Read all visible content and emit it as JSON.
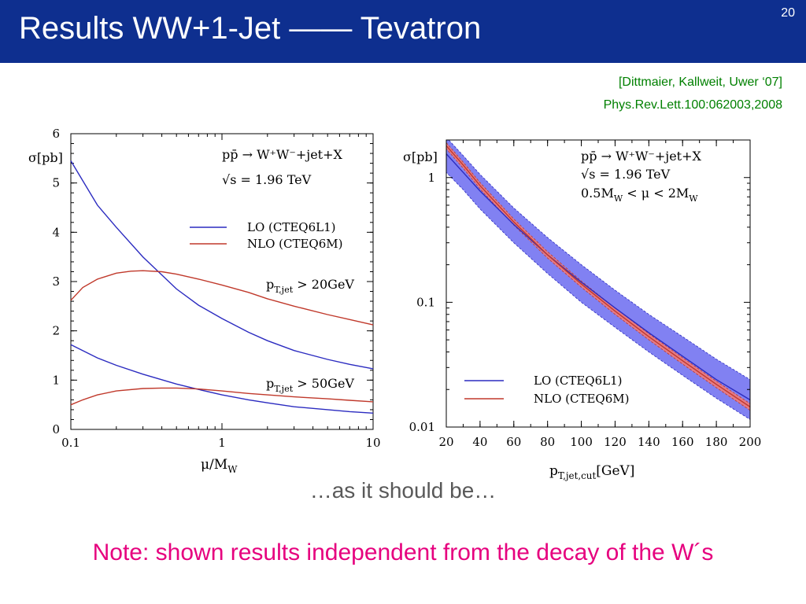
{
  "slide": {
    "title": "Results WW+1-Jet —— Tevatron",
    "page_number": "20",
    "reference_line1": "[Dittmaier, Kallweit, Uwer ‘07]",
    "reference_line2": "Phys.Rev.Lett.100:062003,2008",
    "caption": "…as it should be…",
    "note": "Note: shown results independent from the decay of the W´s"
  },
  "colors": {
    "title_bar": "#0e2f8f",
    "lo": "#2b2bc0",
    "nlo": "#c0392b",
    "lo_band": "#6b6bf0",
    "nlo_band": "#f07a7a",
    "reference": "#008000",
    "caption": "#595959",
    "note": "#e6007e"
  },
  "chart_data": [
    {
      "type": "line",
      "xscale": "log",
      "xlim": [
        0.1,
        10
      ],
      "ylim": [
        0,
        6
      ],
      "xlabel": "μ/M_W",
      "ylabel": "σ[pb]",
      "xticks": [
        0.1,
        1,
        10
      ],
      "xtick_labels": [
        "0.1",
        "1",
        "10"
      ],
      "yticks": [
        0,
        1,
        2,
        3,
        4,
        5,
        6
      ],
      "ytick_labels": [
        "0",
        "1",
        "2",
        "3",
        "4",
        "5",
        "6"
      ],
      "process": "pp̄ → W⁺W⁻+jet+X",
      "energy": "√s = 1.96 TeV",
      "legend": [
        {
          "name": "LO (CTEQ6L1)",
          "color": "#2b2bc0"
        },
        {
          "name": "NLO (CTEQ6M)",
          "color": "#c0392b"
        }
      ],
      "annotations": [
        "p_T,jet > 20GeV",
        "p_T,jet > 50GeV"
      ],
      "series": [
        {
          "name": "LO (CTEQ6L1)",
          "cut": "20GeV",
          "color": "#2b2bc0",
          "x": [
            0.1,
            0.15,
            0.2,
            0.3,
            0.5,
            0.7,
            1,
            1.5,
            2,
            3,
            5,
            7,
            10
          ],
          "y": [
            5.45,
            4.55,
            4.1,
            3.5,
            2.85,
            2.52,
            2.25,
            1.97,
            1.8,
            1.6,
            1.42,
            1.32,
            1.23
          ]
        },
        {
          "name": "NLO (CTEQ6M)",
          "cut": "20GeV",
          "color": "#c0392b",
          "x": [
            0.1,
            0.12,
            0.15,
            0.2,
            0.25,
            0.3,
            0.4,
            0.5,
            0.7,
            1,
            1.5,
            2,
            3,
            5,
            7,
            10
          ],
          "y": [
            2.62,
            2.88,
            3.05,
            3.17,
            3.21,
            3.22,
            3.2,
            3.15,
            3.05,
            2.93,
            2.78,
            2.65,
            2.5,
            2.33,
            2.23,
            2.12
          ]
        },
        {
          "name": "LO (CTEQ6L1)",
          "cut": "50GeV",
          "color": "#2b2bc0",
          "x": [
            0.1,
            0.15,
            0.2,
            0.3,
            0.5,
            0.7,
            1,
            1.5,
            2,
            3,
            5,
            7,
            10
          ],
          "y": [
            1.72,
            1.45,
            1.3,
            1.12,
            0.92,
            0.81,
            0.7,
            0.6,
            0.54,
            0.46,
            0.4,
            0.36,
            0.33
          ]
        },
        {
          "name": "NLO (CTEQ6M)",
          "cut": "50GeV",
          "color": "#c0392b",
          "x": [
            0.1,
            0.12,
            0.15,
            0.2,
            0.3,
            0.4,
            0.5,
            0.7,
            1,
            1.5,
            2,
            3,
            5,
            7,
            10
          ],
          "y": [
            0.5,
            0.6,
            0.7,
            0.78,
            0.83,
            0.84,
            0.84,
            0.82,
            0.78,
            0.73,
            0.7,
            0.66,
            0.62,
            0.59,
            0.56
          ]
        }
      ]
    },
    {
      "type": "line",
      "yscale": "log",
      "xlim": [
        20,
        200
      ],
      "ylim": [
        0.01,
        2
      ],
      "xlabel": "p_T,jet,cut[GeV]",
      "ylabel": "σ[pb]",
      "xticks": [
        20,
        40,
        60,
        80,
        100,
        120,
        140,
        160,
        180,
        200
      ],
      "xtick_labels": [
        "20",
        "40",
        "60",
        "80",
        "100",
        "120",
        "140",
        "160",
        "180",
        "200"
      ],
      "yticks": [
        0.01,
        0.1,
        1
      ],
      "ytick_labels": [
        "0.01",
        "0.1",
        "1"
      ],
      "process": "pp̄ → W⁺W⁻+jet+X",
      "energy": "√s = 1.96 TeV",
      "scale_range": "0.5M_W < μ < 2M_W",
      "legend": [
        {
          "name": "LO (CTEQ6L1)",
          "color": "#2b2bc0"
        },
        {
          "name": "NLO (CTEQ6M)",
          "color": "#c0392b"
        }
      ],
      "series": [
        {
          "name": "LO (CTEQ6L1)",
          "color": "#2b2bc0",
          "x": [
            20,
            30,
            40,
            60,
            80,
            100,
            120,
            140,
            160,
            180,
            200
          ],
          "y": [
            1.55,
            1.1,
            0.78,
            0.42,
            0.24,
            0.145,
            0.09,
            0.057,
            0.037,
            0.024,
            0.0165
          ],
          "band_low": [
            1.1,
            0.8,
            0.56,
            0.3,
            0.17,
            0.1,
            0.063,
            0.04,
            0.026,
            0.017,
            0.0115
          ],
          "band_high": [
            2.1,
            1.5,
            1.06,
            0.57,
            0.33,
            0.2,
            0.125,
            0.08,
            0.053,
            0.035,
            0.024
          ]
        },
        {
          "name": "NLO (CTEQ6M)",
          "color": "#c0392b",
          "x": [
            20,
            30,
            40,
            60,
            80,
            100,
            120,
            140,
            160,
            180,
            200
          ],
          "y": [
            1.8,
            1.26,
            0.86,
            0.44,
            0.24,
            0.14,
            0.085,
            0.053,
            0.034,
            0.022,
            0.0145
          ],
          "band_low": [
            1.7,
            1.19,
            0.81,
            0.415,
            0.226,
            0.132,
            0.08,
            0.05,
            0.032,
            0.0207,
            0.0136
          ],
          "band_high": [
            1.9,
            1.33,
            0.91,
            0.465,
            0.254,
            0.148,
            0.09,
            0.056,
            0.036,
            0.0233,
            0.0154
          ]
        }
      ]
    }
  ]
}
